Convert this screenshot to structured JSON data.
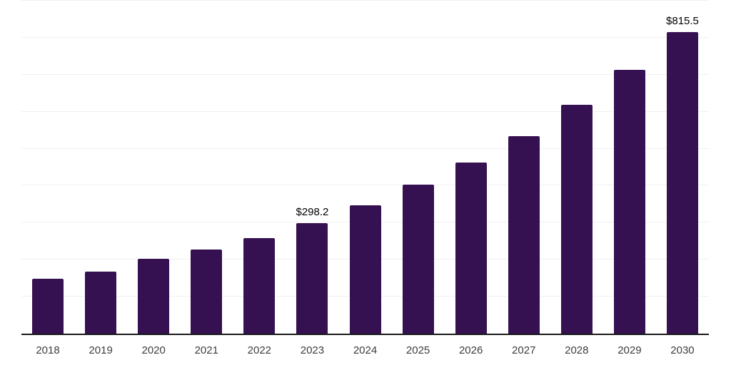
{
  "chart_data": {
    "type": "bar",
    "title": "",
    "xlabel": "",
    "ylabel": "",
    "categories": [
      "2018",
      "2019",
      "2020",
      "2021",
      "2022",
      "2023",
      "2024",
      "2025",
      "2026",
      "2027",
      "2028",
      "2029",
      "2030"
    ],
    "values": [
      148,
      168,
      202,
      228,
      258,
      298.2,
      346,
      402,
      463,
      534,
      618,
      713,
      815.5
    ],
    "value_labels": {
      "2023": "$298.2",
      "2030": "$815.5"
    },
    "ylim": [
      0,
      900
    ],
    "grid_step": 100,
    "grid": true,
    "y_tick_labels_visible": false,
    "legend": false,
    "colors": {
      "bar_fill": "#351151",
      "gridline": "#f0f0f0",
      "axis_line": "#1a1a1a",
      "tick_label": "#3d3d3d",
      "value_label": "#000000",
      "background": "#ffffff"
    }
  }
}
